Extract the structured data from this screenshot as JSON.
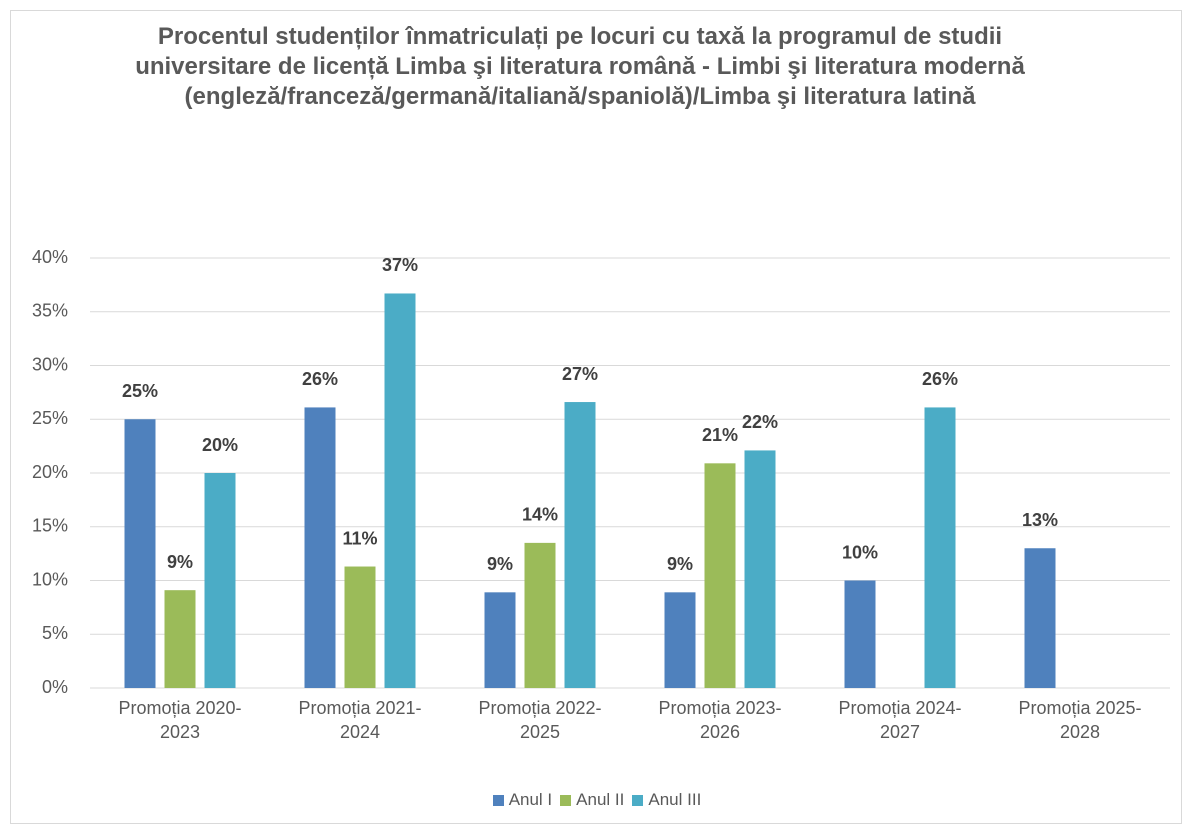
{
  "chart_data": {
    "type": "bar",
    "title": "Procentul studenților înmatriculați pe locuri cu taxă la programul de studii universitare de licență Limba şi literatura română - Limbi şi literatura modernă\n(engleză/franceză/germană/italiană/spaniolă)/Limba şi literatura latină",
    "categories": [
      "Promoția 2020-2023",
      "Promoția 2021-2024",
      "Promoția 2022-2025",
      "Promoția 2023-2026",
      "Promoția 2024-2027",
      "Promoția 2025-2028"
    ],
    "series": [
      {
        "name": "Anul I",
        "color": "#4f81bd",
        "values": [
          25.0,
          26.1,
          8.9,
          8.9,
          10.0,
          13.0
        ],
        "value_labels": [
          "25%",
          "26%",
          "9%",
          "9%",
          "10%",
          "13%"
        ]
      },
      {
        "name": "Anul II",
        "color": "#9bbb59",
        "values": [
          9.1,
          11.3,
          13.5,
          20.9,
          null,
          null
        ],
        "value_labels": [
          "9%",
          "11%",
          "14%",
          "21%",
          null,
          null
        ]
      },
      {
        "name": "Anul III",
        "color": "#4bacc6",
        "values": [
          20.0,
          36.7,
          26.6,
          22.1,
          26.1,
          null
        ],
        "value_labels": [
          "20%",
          "37%",
          "27%",
          "22%",
          "26%",
          null
        ]
      }
    ],
    "ylim": [
      0,
      40
    ],
    "yticks": [
      {
        "value": 0,
        "label": "0%"
      },
      {
        "value": 5,
        "label": "5%"
      },
      {
        "value": 10,
        "label": "10%"
      },
      {
        "value": 15,
        "label": "15%"
      },
      {
        "value": 20,
        "label": "20%"
      },
      {
        "value": 25,
        "label": "25%"
      },
      {
        "value": 30,
        "label": "30%"
      },
      {
        "value": 35,
        "label": "35%"
      },
      {
        "value": 40,
        "label": "40%"
      }
    ],
    "grid": true,
    "legend": "bottom"
  }
}
